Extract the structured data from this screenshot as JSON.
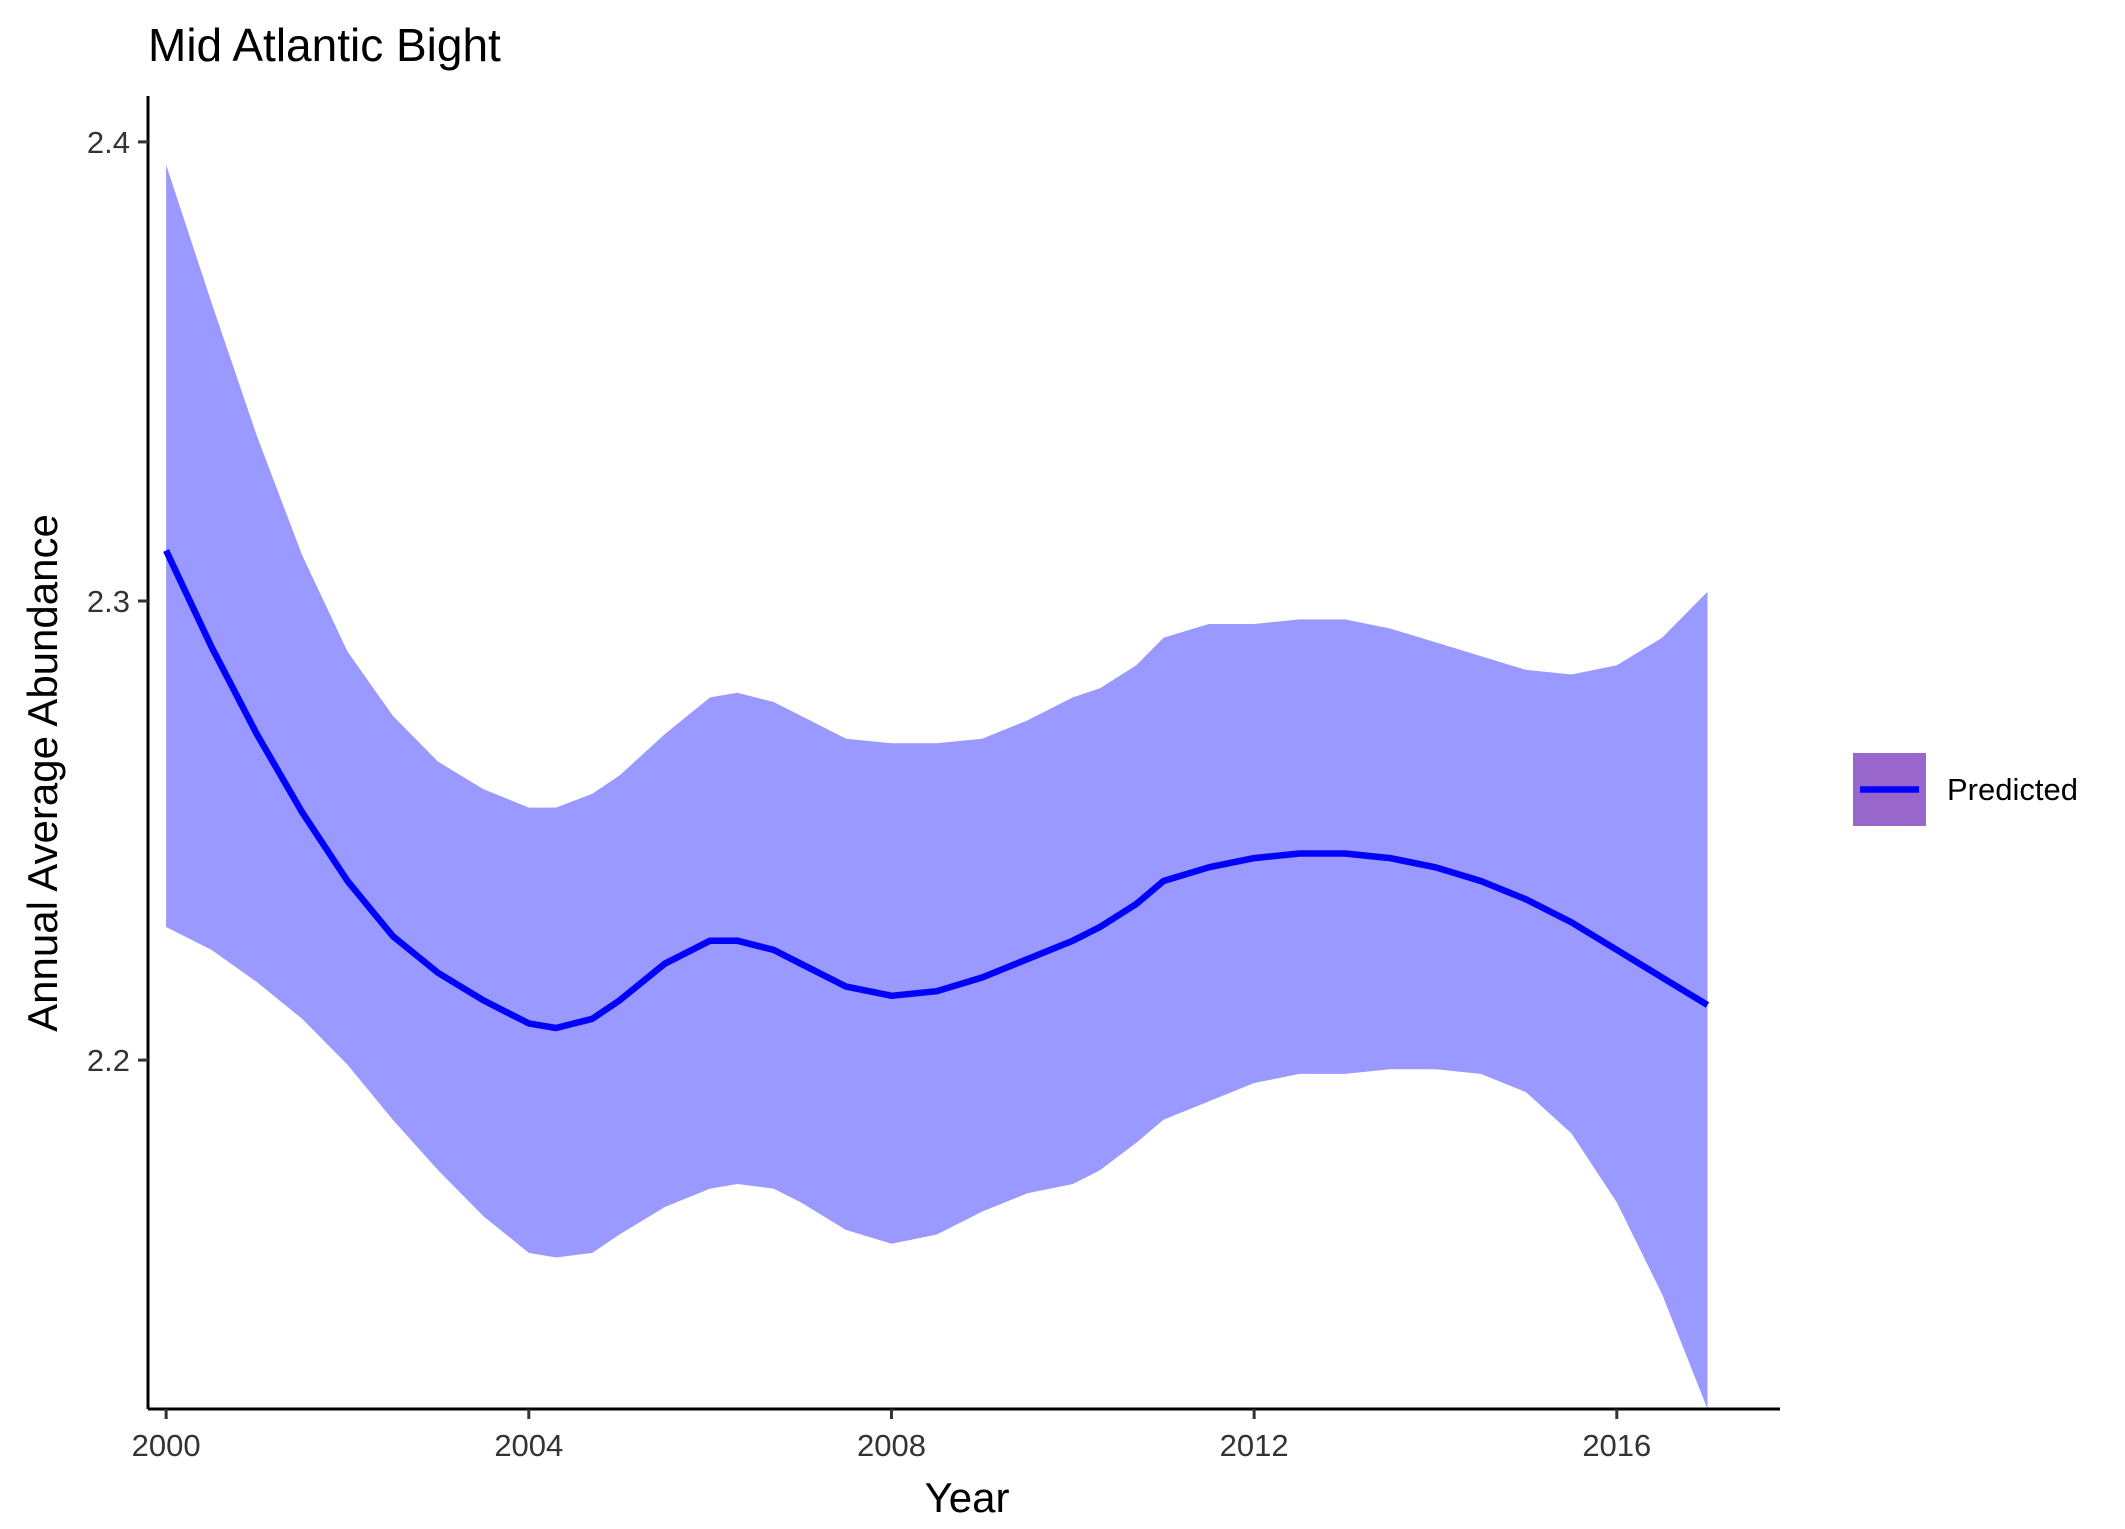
{
  "chart_data": {
    "type": "line",
    "title": "Mid Atlantic Bight",
    "xlabel": "Year",
    "ylabel": "Annual Average Abundance",
    "xlim": [
      1999.8,
      2017.8
    ],
    "ylim": [
      2.124,
      2.41
    ],
    "x_ticks": [
      2000,
      2004,
      2008,
      2012,
      2016
    ],
    "y_ticks": [
      2.2,
      2.3,
      2.4
    ],
    "x_tick_labels": [
      "2000",
      "2004",
      "2008",
      "2012",
      "2016"
    ],
    "y_tick_labels": [
      "2.2",
      "2.3",
      "2.4"
    ],
    "grid": false,
    "legend_position": "right",
    "series": [
      {
        "name": "Predicted",
        "x": [
          2000,
          2000.5,
          2001,
          2001.5,
          2002,
          2002.5,
          2003,
          2003.5,
          2004,
          2004.3,
          2004.7,
          2005,
          2005.5,
          2006,
          2006.3,
          2006.7,
          2007,
          2007.5,
          2008,
          2008.5,
          2009,
          2009.5,
          2010,
          2010.3,
          2010.7,
          2011,
          2011.5,
          2012,
          2012.5,
          2013,
          2013.5,
          2014,
          2014.5,
          2015,
          2015.5,
          2016,
          2016.5,
          2017
        ],
        "y": [
          2.311,
          2.29,
          2.271,
          2.254,
          2.239,
          2.227,
          2.219,
          2.213,
          2.208,
          2.207,
          2.209,
          2.213,
          2.221,
          2.226,
          2.226,
          2.224,
          2.221,
          2.216,
          2.214,
          2.215,
          2.218,
          2.222,
          2.226,
          2.229,
          2.234,
          2.239,
          2.242,
          2.244,
          2.245,
          2.245,
          2.244,
          2.242,
          2.239,
          2.235,
          2.23,
          2.224,
          2.218,
          2.212
        ],
        "lower": [
          2.229,
          2.224,
          2.217,
          2.209,
          2.199,
          2.187,
          2.176,
          2.166,
          2.158,
          2.157,
          2.158,
          2.162,
          2.168,
          2.172,
          2.173,
          2.172,
          2.169,
          2.163,
          2.16,
          2.162,
          2.167,
          2.171,
          2.173,
          2.176,
          2.182,
          2.187,
          2.191,
          2.195,
          2.197,
          2.197,
          2.198,
          2.198,
          2.197,
          2.193,
          2.184,
          2.169,
          2.149,
          2.124
        ],
        "upper": [
          2.395,
          2.365,
          2.336,
          2.31,
          2.289,
          2.275,
          2.265,
          2.259,
          2.255,
          2.255,
          2.258,
          2.262,
          2.271,
          2.279,
          2.28,
          2.278,
          2.275,
          2.27,
          2.269,
          2.269,
          2.27,
          2.274,
          2.279,
          2.281,
          2.286,
          2.292,
          2.295,
          2.295,
          2.296,
          2.296,
          2.294,
          2.291,
          2.288,
          2.285,
          2.284,
          2.286,
          2.292,
          2.302
        ]
      }
    ],
    "colors": {
      "line": "#0000ff",
      "ribbon": "#9999ff",
      "legend_key": "#9966cc",
      "axis": "#000000"
    }
  }
}
